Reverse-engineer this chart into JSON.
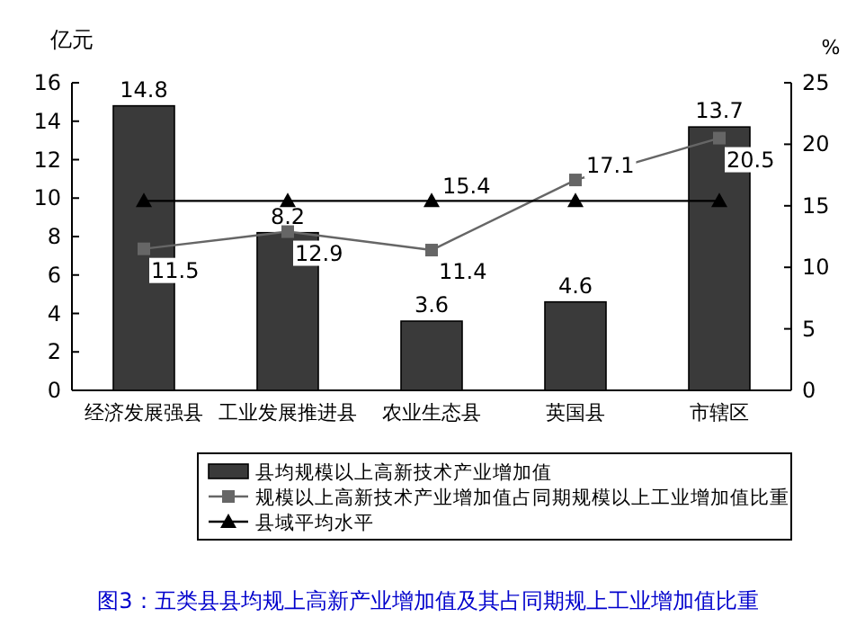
{
  "chart_data": {
    "type": "bar",
    "title": "图3：五类县县均规上高新产业增加值及其占同期规上工业增加值比重",
    "categories": [
      "经济发展强县",
      "工业发展推进县",
      "农业生态县",
      "英国县",
      "市辖区"
    ],
    "ylabel": "亿元",
    "y2label": "%",
    "ylim": [
      0,
      16
    ],
    "yticks": [
      0,
      2,
      4,
      6,
      8,
      10,
      12,
      14,
      16
    ],
    "y2lim": [
      0,
      25
    ],
    "y2ticks": [
      0,
      5,
      10,
      15,
      20,
      25
    ],
    "legend": "bottom",
    "series": [
      {
        "name": "县均规模以上高新技术产业增加值",
        "color": "#3a3a3a",
        "values": [
          14.8,
          8.2,
          3.6,
          4.6,
          13.7
        ],
        "value_labels": [
          "14.8",
          "8.2",
          "3.6",
          "4.6",
          "13.7"
        ]
      },
      {
        "name": "规模以上高新技术产业增加值占同期规模以上工业增加值比重",
        "type": "line",
        "axis": "y2",
        "color": "#666666",
        "marker": "square",
        "values": [
          11.5,
          12.9,
          11.4,
          17.1,
          20.5
        ],
        "value_labels": [
          "11.5",
          "12.9",
          "11.4",
          "17.1",
          "20.5"
        ]
      },
      {
        "name": "县域平均水平",
        "type": "line",
        "axis": "y2",
        "color": "#000000",
        "marker": "triangle",
        "values": [
          15.4,
          15.4,
          15.4,
          15.4,
          15.4
        ],
        "value_labels": [
          null,
          null,
          "15.4",
          null,
          null
        ]
      }
    ]
  }
}
